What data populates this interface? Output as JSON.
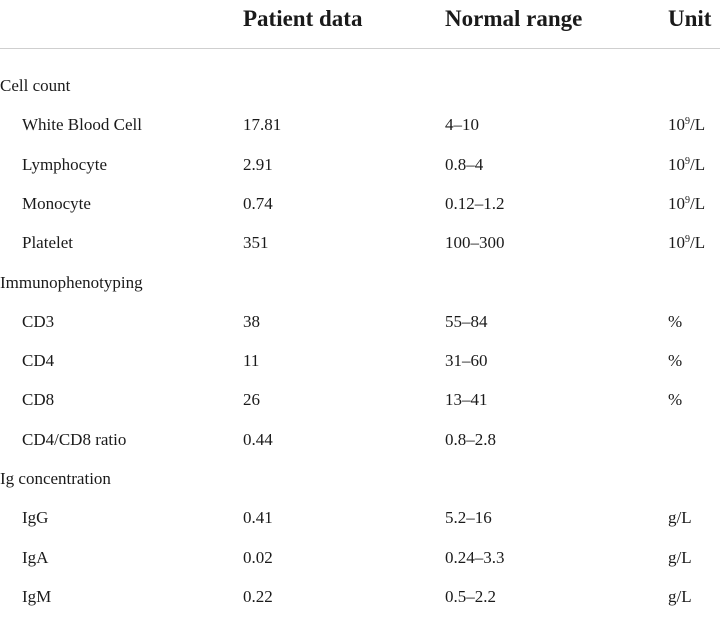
{
  "header": {
    "patient_data": "Patient data",
    "normal_range": "Normal range",
    "unit": "Unit"
  },
  "sections": [
    {
      "title": "Cell count",
      "rows": [
        {
          "name": "White Blood Cell",
          "patient": "17.81",
          "normal": "4–10",
          "unit_base": "10",
          "unit_exp": "9",
          "unit_rest": "/L"
        },
        {
          "name": "Lymphocyte",
          "patient": "2.91",
          "normal": "0.8–4",
          "unit_base": "10",
          "unit_exp": "9",
          "unit_rest": "/L"
        },
        {
          "name": "Monocyte",
          "patient": "0.74",
          "normal": "0.12–1.2",
          "unit_base": "10",
          "unit_exp": "9",
          "unit_rest": "/L"
        },
        {
          "name": "Platelet",
          "patient": "351",
          "normal": "100–300",
          "unit_base": "10",
          "unit_exp": "9",
          "unit_rest": "/L"
        }
      ]
    },
    {
      "title": "Immunophenotyping",
      "rows": [
        {
          "name": "CD3",
          "patient": "38",
          "normal": "55–84",
          "unit_base": "%",
          "unit_exp": "",
          "unit_rest": ""
        },
        {
          "name": "CD4",
          "patient": "11",
          "normal": "31–60",
          "unit_base": "%",
          "unit_exp": "",
          "unit_rest": ""
        },
        {
          "name": "CD8",
          "patient": "26",
          "normal": "13–41",
          "unit_base": "%",
          "unit_exp": "",
          "unit_rest": ""
        },
        {
          "name": "CD4/CD8 ratio",
          "patient": "0.44",
          "normal": "0.8–2.8",
          "unit_base": "",
          "unit_exp": "",
          "unit_rest": ""
        }
      ]
    },
    {
      "title": "Ig concentration",
      "rows": [
        {
          "name": "IgG",
          "patient": "0.41",
          "normal": "5.2–16",
          "unit_base": "g/L",
          "unit_exp": "",
          "unit_rest": ""
        },
        {
          "name": "IgA",
          "patient": "0.02",
          "normal": "0.24–3.3",
          "unit_base": "g/L",
          "unit_exp": "",
          "unit_rest": ""
        },
        {
          "name": "IgM",
          "patient": "0.22",
          "normal": "0.5–2.2",
          "unit_base": "g/L",
          "unit_exp": "",
          "unit_rest": ""
        }
      ]
    }
  ]
}
